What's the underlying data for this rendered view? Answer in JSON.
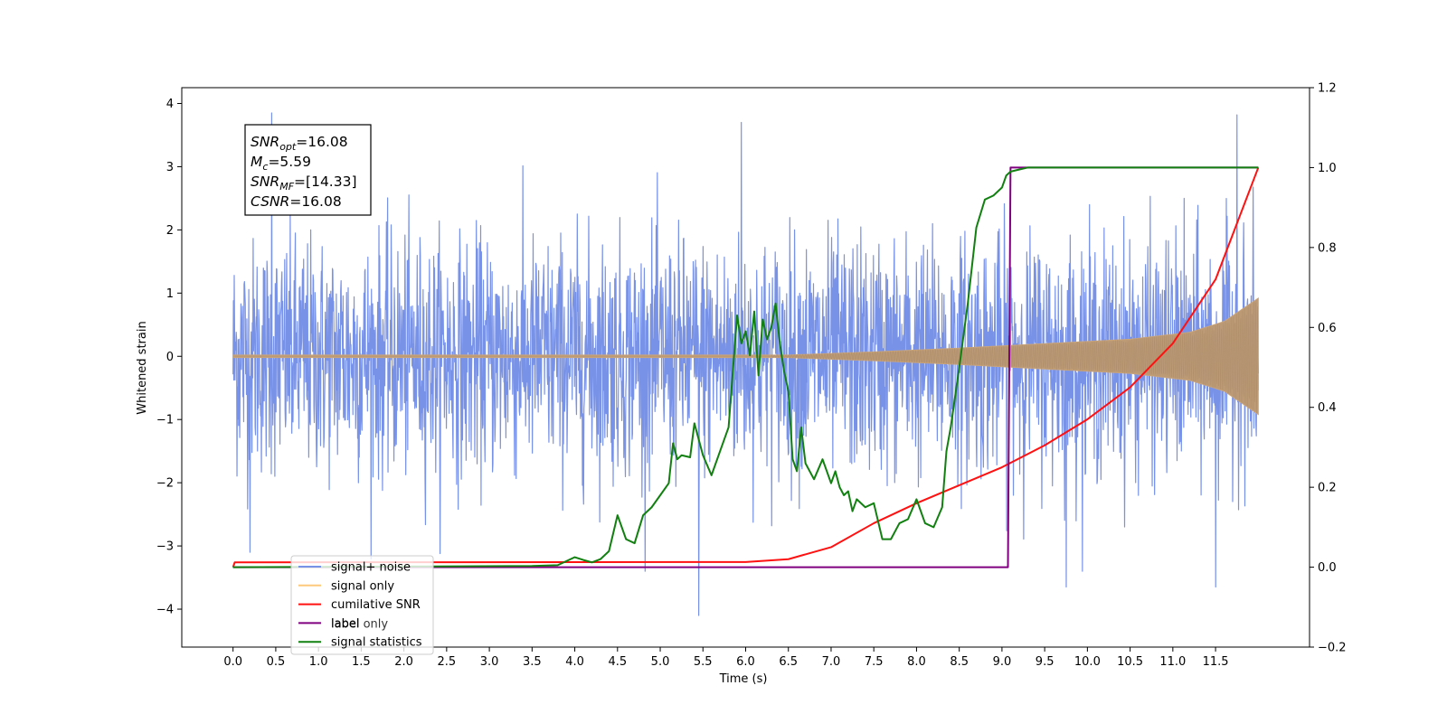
{
  "chart_data": {
    "type": "line",
    "xlabel": "Time (s)",
    "ylabel": "Whitened strain",
    "xlim": [
      -0.6,
      12.6
    ],
    "ylim": [
      -4.6,
      4.25
    ],
    "y2lim": [
      -0.2,
      1.2
    ],
    "x_ticks": [
      "0.0",
      "0.5",
      "1.0",
      "1.5",
      "2.0",
      "2.5",
      "3.0",
      "3.5",
      "4.0",
      "4.5",
      "5.0",
      "5.5",
      "6.0",
      "6.5",
      "7.0",
      "7.5",
      "8.0",
      "8.5",
      "9.0",
      "9.5",
      "10.0",
      "10.5",
      "11.0",
      "11.5"
    ],
    "y_ticks": [
      "4",
      "3",
      "2",
      "1",
      "0",
      "−1",
      "−2",
      "−3",
      "−4"
    ],
    "y2_ticks": [
      "1.2",
      "1.0",
      "0.8",
      "0.6",
      "0.4",
      "0.2",
      "0.0",
      "−0.2"
    ],
    "grid": false,
    "legend_position": "lower-left",
    "annotation": {
      "lines": [
        {
          "sym": "SNR",
          "sub": "opt",
          "value": "=16.08"
        },
        {
          "sym": "M",
          "sub": "c",
          "value": "=5.59"
        },
        {
          "sym": "SNR",
          "sub": "MF",
          "value": "=[14.33]"
        },
        {
          "sym": "CSNR",
          "sub": "",
          "value": "=16.08"
        }
      ]
    },
    "legend": [
      {
        "label": "signal+ noise",
        "color": "#7892e8"
      },
      {
        "label": "signal only",
        "color": "#fdc97c"
      },
      {
        "label": "cumilative SNR",
        "color": "#ff1111"
      },
      {
        "label": "label",
        "color": "#800080"
      },
      {
        "label": "signal statistics",
        "color": "#118011"
      }
    ],
    "overlapped_legend_text": "label only",
    "series": [
      {
        "name": "signal+ noise",
        "axis": "left",
        "color": "#7892e8",
        "x_range": [
          0.0,
          12.0
        ],
        "envelope": "noise band approx. -2.0 to 2.0, spikes up to 3.85 and down to -4.1",
        "spikes": [
          [
            0.45,
            3.85
          ],
          [
            5.45,
            -4.1
          ],
          [
            5.95,
            3.7
          ],
          [
            11.75,
            3.82
          ],
          [
            9.75,
            -3.65
          ],
          [
            11.5,
            -3.65
          ],
          [
            0.2,
            -3.1
          ]
        ]
      },
      {
        "name": "signal only",
        "axis": "left",
        "color": "#c49a6c",
        "x_range": [
          0.0,
          12.0
        ],
        "amplitude": [
          [
            0.0,
            0.02
          ],
          [
            6.5,
            0.02
          ],
          [
            7.5,
            0.07
          ],
          [
            8.5,
            0.13
          ],
          [
            9.5,
            0.2
          ],
          [
            10.5,
            0.27
          ],
          [
            11.2,
            0.38
          ],
          [
            11.6,
            0.55
          ],
          [
            12.0,
            0.92
          ]
        ]
      },
      {
        "name": "cumilative SNR",
        "axis": "right",
        "color": "#ff1111",
        "x": [
          0.0,
          0.02,
          6.0,
          6.5,
          7.0,
          7.5,
          8.0,
          8.5,
          9.0,
          9.5,
          10.0,
          10.5,
          11.0,
          11.5,
          12.0
        ],
        "y": [
          0.0,
          0.012,
          0.013,
          0.02,
          0.05,
          0.11,
          0.16,
          0.205,
          0.25,
          0.305,
          0.37,
          0.45,
          0.56,
          0.72,
          1.0
        ]
      },
      {
        "name": "label",
        "axis": "right",
        "color": "#800080",
        "x": [
          0.0,
          9.07,
          9.1,
          12.0
        ],
        "y": [
          0.0,
          0.0,
          1.0,
          1.0
        ]
      },
      {
        "name": "signal statistics",
        "axis": "right",
        "color": "#118011",
        "x": [
          0.0,
          3.5,
          3.8,
          4.0,
          4.1,
          4.2,
          4.3,
          4.4,
          4.5,
          4.6,
          4.7,
          4.8,
          4.9,
          5.0,
          5.1,
          5.15,
          5.2,
          5.25,
          5.35,
          5.4,
          5.5,
          5.6,
          5.7,
          5.8,
          5.9,
          5.95,
          6.0,
          6.05,
          6.1,
          6.15,
          6.2,
          6.25,
          6.3,
          6.35,
          6.4,
          6.45,
          6.5,
          6.55,
          6.6,
          6.65,
          6.7,
          6.8,
          6.9,
          7.0,
          7.05,
          7.1,
          7.15,
          7.2,
          7.25,
          7.3,
          7.4,
          7.5,
          7.6,
          7.7,
          7.8,
          7.9,
          8.0,
          8.1,
          8.2,
          8.3,
          8.35,
          8.4,
          8.5,
          8.6,
          8.7,
          8.8,
          8.9,
          9.0,
          9.05,
          9.1,
          9.2,
          9.3,
          9.4,
          9.5,
          9.6,
          9.8,
          10.0,
          12.0
        ],
        "y": [
          0.0,
          0.003,
          0.005,
          0.025,
          0.018,
          0.012,
          0.02,
          0.04,
          0.13,
          0.07,
          0.06,
          0.13,
          0.15,
          0.18,
          0.21,
          0.31,
          0.27,
          0.28,
          0.275,
          0.36,
          0.28,
          0.23,
          0.29,
          0.35,
          0.63,
          0.56,
          0.59,
          0.53,
          0.64,
          0.48,
          0.62,
          0.57,
          0.6,
          0.66,
          0.56,
          0.49,
          0.44,
          0.27,
          0.24,
          0.35,
          0.26,
          0.22,
          0.27,
          0.21,
          0.24,
          0.2,
          0.18,
          0.19,
          0.14,
          0.17,
          0.15,
          0.16,
          0.07,
          0.07,
          0.11,
          0.12,
          0.17,
          0.11,
          0.1,
          0.15,
          0.29,
          0.35,
          0.5,
          0.66,
          0.85,
          0.92,
          0.93,
          0.95,
          0.98,
          0.99,
          0.995,
          1.0,
          1.0,
          1.0,
          1.0,
          1.0,
          1.0,
          1.0
        ]
      }
    ]
  }
}
